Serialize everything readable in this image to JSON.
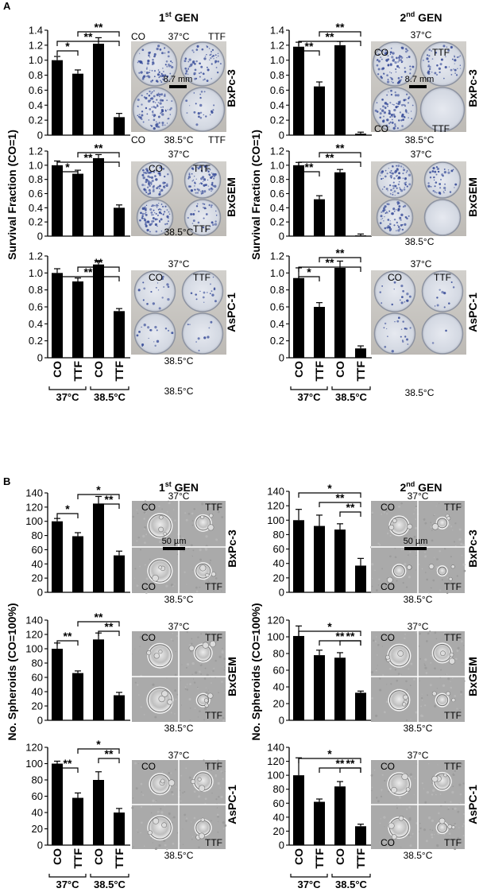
{
  "figure": {
    "panel_labels": [
      "A",
      "B"
    ],
    "units": {
      "t37": "37°C",
      "t385": "38.5°C",
      "scalebar_a": "8.7 mm",
      "scalebar_b": "50 µm"
    },
    "condition_labels": [
      "CO",
      "TTF",
      "CO",
      "TTF"
    ],
    "temperature_groups": [
      "37°C",
      "38.5°C"
    ],
    "gen_labels": [
      {
        "main": "1",
        "sup": "st",
        "rest": " GEN"
      },
      {
        "main": "2",
        "sup": "nd",
        "rest": " GEN"
      }
    ],
    "cell_lines": [
      "BxPc-3",
      "BxGEM",
      "AsPC-1"
    ],
    "ylabel_a": "Survival Fraction (CO=1)",
    "ylabel_b": "No. Spheroids (CO=100%)",
    "image_labels": {
      "co": "CO",
      "ttf": "TTF"
    }
  },
  "chart_data": [
    {
      "type": "bar",
      "panel": "A",
      "generation": "1st GEN",
      "cell_line": "BxPc-3",
      "categories": [
        "CO",
        "TTF",
        "CO",
        "TTF"
      ],
      "groups": [
        "37°C",
        "38.5°C"
      ],
      "values": [
        1.0,
        0.82,
        1.22,
        0.24
      ],
      "errors": [
        0.05,
        0.05,
        0.08,
        0.05
      ],
      "ylim": [
        0,
        1.4
      ],
      "yticks": [
        0,
        0.2,
        0.4,
        0.6,
        0.8,
        1.0,
        1.2,
        1.4
      ],
      "ytick_labels": [
        "0",
        "0.2",
        "0.4",
        "0.6",
        "0.8",
        "1.0",
        "1.2",
        "1.4"
      ],
      "ylabel": "Survival Fraction (CO=1)",
      "significance": [
        {
          "from": 0,
          "to": 1,
          "label": "*",
          "level": 1
        },
        {
          "from": 0,
          "to": 3,
          "label": "**",
          "level": 2
        },
        {
          "from": 1,
          "to": 3,
          "label": "**",
          "level": 3
        }
      ]
    },
    {
      "type": "bar",
      "panel": "A",
      "generation": "1st GEN",
      "cell_line": "BxGEM",
      "categories": [
        "CO",
        "TTF",
        "CO",
        "TTF"
      ],
      "groups": [
        "37°C",
        "38.5°C"
      ],
      "values": [
        1.0,
        0.88,
        1.1,
        0.4
      ],
      "errors": [
        0.06,
        0.05,
        0.05,
        0.04
      ],
      "ylim": [
        0,
        1.2
      ],
      "yticks": [
        0,
        0.2,
        0.4,
        0.6,
        0.8,
        1.0,
        1.2
      ],
      "ytick_labels": [
        "0",
        "0.2",
        "0.4",
        "0.6",
        "0.8",
        "1.0",
        "1.2"
      ],
      "ylabel": "Survival Fraction (CO=1)",
      "significance": [
        {
          "from": 0,
          "to": 1,
          "label": "*",
          "level": 1
        },
        {
          "from": 0,
          "to": 3,
          "label": "**",
          "level": 2
        },
        {
          "from": 1,
          "to": 3,
          "label": "**",
          "level": 3
        }
      ]
    },
    {
      "type": "bar",
      "panel": "A",
      "generation": "1st GEN",
      "cell_line": "AsPC-1",
      "categories": [
        "CO",
        "TTF",
        "CO",
        "TTF"
      ],
      "groups": [
        "37°C",
        "38.5°C"
      ],
      "values": [
        1.0,
        0.9,
        1.1,
        0.55
      ],
      "errors": [
        0.05,
        0.04,
        0.04,
        0.03
      ],
      "ylim": [
        0,
        1.2
      ],
      "yticks": [
        0,
        0.2,
        0.4,
        0.6,
        0.8,
        1.0,
        1.2
      ],
      "ytick_labels": [
        "0",
        "0.2",
        "0.4",
        "0.6",
        "0.8",
        "1.0",
        "1.2"
      ],
      "ylabel": "Survival Fraction (CO=1)",
      "significance": [
        {
          "from": 0,
          "to": 3,
          "label": "**",
          "level": 1
        },
        {
          "from": 1,
          "to": 3,
          "label": "**",
          "level": 2
        }
      ]
    },
    {
      "type": "bar",
      "panel": "A",
      "generation": "2nd GEN",
      "cell_line": "BxPc-3",
      "categories": [
        "CO",
        "TTF",
        "CO",
        "TTF"
      ],
      "groups": [
        "37°C",
        "38.5°C"
      ],
      "values": [
        1.18,
        0.65,
        1.2,
        0.02
      ],
      "errors": [
        0.06,
        0.06,
        0.05,
        0.02
      ],
      "ylim": [
        0,
        1.4
      ],
      "yticks": [
        0,
        0.2,
        0.4,
        0.6,
        0.8,
        1.0,
        1.2,
        1.4
      ],
      "ytick_labels": [
        "0",
        "0.2",
        "0.4",
        "0.6",
        "0.8",
        "1.0",
        "1.2",
        "1.4"
      ],
      "ylabel": "Survival Fraction (CO=1)",
      "significance": [
        {
          "from": 0,
          "to": 1,
          "label": "**",
          "level": 1
        },
        {
          "from": 0,
          "to": 3,
          "label": "**",
          "level": 2
        },
        {
          "from": 1,
          "to": 3,
          "label": "**",
          "level": 3
        }
      ]
    },
    {
      "type": "bar",
      "panel": "A",
      "generation": "2nd GEN",
      "cell_line": "BxGEM",
      "categories": [
        "CO",
        "TTF",
        "CO",
        "TTF"
      ],
      "groups": [
        "37°C",
        "38.5°C"
      ],
      "values": [
        1.0,
        0.52,
        0.9,
        0.01
      ],
      "errors": [
        0.04,
        0.05,
        0.04,
        0.02
      ],
      "ylim": [
        0,
        1.2
      ],
      "yticks": [
        0,
        0.2,
        0.4,
        0.6,
        0.8,
        1.0,
        1.2
      ],
      "ytick_labels": [
        "0",
        "0.2",
        "0.4",
        "0.6",
        "0.8",
        "1.0",
        "1.2"
      ],
      "ylabel": "Survival Fraction (CO=1)",
      "significance": [
        {
          "from": 0,
          "to": 1,
          "label": "**",
          "level": 1
        },
        {
          "from": 0,
          "to": 3,
          "label": "**",
          "level": 2
        },
        {
          "from": 1,
          "to": 3,
          "label": "**",
          "level": 3
        }
      ]
    },
    {
      "type": "bar",
      "panel": "A",
      "generation": "2nd GEN",
      "cell_line": "AsPC-1",
      "categories": [
        "CO",
        "TTF",
        "CO",
        "TTF"
      ],
      "groups": [
        "37°C",
        "38.5°C"
      ],
      "values": [
        0.94,
        0.6,
        1.06,
        0.11
      ],
      "errors": [
        0.12,
        0.05,
        0.08,
        0.03
      ],
      "ylim": [
        0,
        1.2
      ],
      "yticks": [
        0,
        0.2,
        0.4,
        0.6,
        0.8,
        1.0,
        1.2
      ],
      "ytick_labels": [
        "0",
        "0.2",
        "0.4",
        "0.6",
        "0.8",
        "1.0",
        "1.2"
      ],
      "ylabel": "Survival Fraction (CO=1)",
      "significance": [
        {
          "from": 0,
          "to": 1,
          "label": "*",
          "level": 1
        },
        {
          "from": 0,
          "to": 3,
          "label": "**",
          "level": 2
        },
        {
          "from": 1,
          "to": 3,
          "label": "**",
          "level": 3
        }
      ]
    },
    {
      "type": "bar",
      "panel": "B",
      "generation": "1st GEN",
      "cell_line": "BxPc-3",
      "categories": [
        "CO",
        "TTF",
        "CO",
        "TTF"
      ],
      "groups": [
        "37°C",
        "38.5°C"
      ],
      "values": [
        100,
        79,
        125,
        52
      ],
      "errors": [
        4,
        5,
        10,
        6
      ],
      "ylim": [
        0,
        140
      ],
      "yticks": [
        0,
        20,
        40,
        60,
        80,
        100,
        120,
        140
      ],
      "ytick_labels": [
        "0",
        "20",
        "40",
        "60",
        "80",
        "100",
        "120",
        "140"
      ],
      "ylabel": "No. Spheroids (CO=100%)",
      "significance": [
        {
          "from": 0,
          "to": 1,
          "label": "*",
          "level": 1
        },
        {
          "from": 2,
          "to": 3,
          "label": "**",
          "level": 2
        },
        {
          "from": 1,
          "to": 3,
          "label": "*",
          "level": 3
        }
      ]
    },
    {
      "type": "bar",
      "panel": "B",
      "generation": "1st GEN",
      "cell_line": "BxGEM",
      "categories": [
        "CO",
        "TTF",
        "CO",
        "TTF"
      ],
      "groups": [
        "37°C",
        "38.5°C"
      ],
      "values": [
        100,
        66,
        113,
        35
      ],
      "errors": [
        8,
        3,
        9,
        4
      ],
      "ylim": [
        0,
        140
      ],
      "yticks": [
        0,
        20,
        40,
        60,
        80,
        100,
        120,
        140
      ],
      "ytick_labels": [
        "0",
        "20",
        "40",
        "60",
        "80",
        "100",
        "120",
        "140"
      ],
      "ylabel": "No. Spheroids (CO=100%)",
      "significance": [
        {
          "from": 0,
          "to": 1,
          "label": "**",
          "level": 1
        },
        {
          "from": 2,
          "to": 3,
          "label": "**",
          "level": 2
        },
        {
          "from": 1,
          "to": 3,
          "label": "**",
          "level": 3
        }
      ]
    },
    {
      "type": "bar",
      "panel": "B",
      "generation": "1st GEN",
      "cell_line": "AsPC-1",
      "categories": [
        "CO",
        "TTF",
        "CO",
        "TTF"
      ],
      "groups": [
        "37°C",
        "38.5°C"
      ],
      "values": [
        100,
        58,
        80,
        40
      ],
      "errors": [
        3,
        6,
        10,
        5
      ],
      "ylim": [
        0,
        120
      ],
      "yticks": [
        0,
        20,
        40,
        60,
        80,
        100,
        120
      ],
      "ytick_labels": [
        "0",
        "20",
        "40",
        "60",
        "80",
        "100",
        "120"
      ],
      "ylabel": "No. Spheroids (CO=100%)",
      "significance": [
        {
          "from": 0,
          "to": 1,
          "label": "**",
          "level": 1
        },
        {
          "from": 2,
          "to": 3,
          "label": "**",
          "level": 2
        },
        {
          "from": 1,
          "to": 3,
          "label": "*",
          "level": 3
        }
      ]
    },
    {
      "type": "bar",
      "panel": "B",
      "generation": "2nd GEN",
      "cell_line": "BxPc-3",
      "categories": [
        "CO",
        "TTF",
        "CO",
        "TTF"
      ],
      "groups": [
        "37°C",
        "38.5°C"
      ],
      "values": [
        100,
        92,
        87,
        37
      ],
      "errors": [
        15,
        15,
        8,
        10
      ],
      "ylim": [
        0,
        140
      ],
      "yticks": [
        0,
        20,
        40,
        60,
        80,
        100,
        120,
        140
      ],
      "ytick_labels": [
        "0",
        "20",
        "40",
        "60",
        "80",
        "100",
        "120",
        "140"
      ],
      "ylabel": "No. Spheroids (CO=100%)",
      "significance": [
        {
          "from": 2,
          "to": 3,
          "label": "**",
          "level": 1
        },
        {
          "from": 1,
          "to": 3,
          "label": "**",
          "level": 2
        },
        {
          "from": 0,
          "to": 3,
          "label": "*",
          "level": 3
        }
      ]
    },
    {
      "type": "bar",
      "panel": "B",
      "generation": "2nd GEN",
      "cell_line": "BxGEM",
      "categories": [
        "CO",
        "TTF",
        "CO",
        "TTF"
      ],
      "groups": [
        "37°C",
        "38.5°C"
      ],
      "values": [
        101,
        78,
        75,
        33
      ],
      "errors": [
        12,
        6,
        6,
        2
      ],
      "ylim": [
        0,
        120
      ],
      "yticks": [
        0,
        20,
        40,
        60,
        80,
        100,
        120
      ],
      "ytick_labels": [
        "0",
        "20",
        "40",
        "60",
        "80",
        "100",
        "120"
      ],
      "ylabel": "No. Spheroids (CO=100%)",
      "significance": [
        {
          "from": 1,
          "to": 3,
          "label": "**",
          "level": 1
        },
        {
          "from": 2,
          "to": 3,
          "label": "**",
          "level": 1
        },
        {
          "from": 0,
          "to": 3,
          "label": "*",
          "level": 2
        }
      ]
    },
    {
      "type": "bar",
      "panel": "B",
      "generation": "2nd GEN",
      "cell_line": "AsPC-1",
      "categories": [
        "CO",
        "TTF",
        "CO",
        "TTF"
      ],
      "groups": [
        "37°C",
        "38.5°C"
      ],
      "values": [
        100,
        62,
        84,
        27
      ],
      "errors": [
        25,
        4,
        7,
        3
      ],
      "ylim": [
        0,
        140
      ],
      "yticks": [
        0,
        20,
        40,
        60,
        80,
        100,
        120,
        140
      ],
      "ytick_labels": [
        "0",
        "20",
        "40",
        "60",
        "80",
        "100",
        "120",
        "140"
      ],
      "ylabel": "No. Spheroids (CO=100%)",
      "significance": [
        {
          "from": 1,
          "to": 3,
          "label": "**",
          "level": 1
        },
        {
          "from": 2,
          "to": 3,
          "label": "**",
          "level": 1
        },
        {
          "from": 0,
          "to": 3,
          "label": "*",
          "level": 2
        }
      ]
    }
  ]
}
